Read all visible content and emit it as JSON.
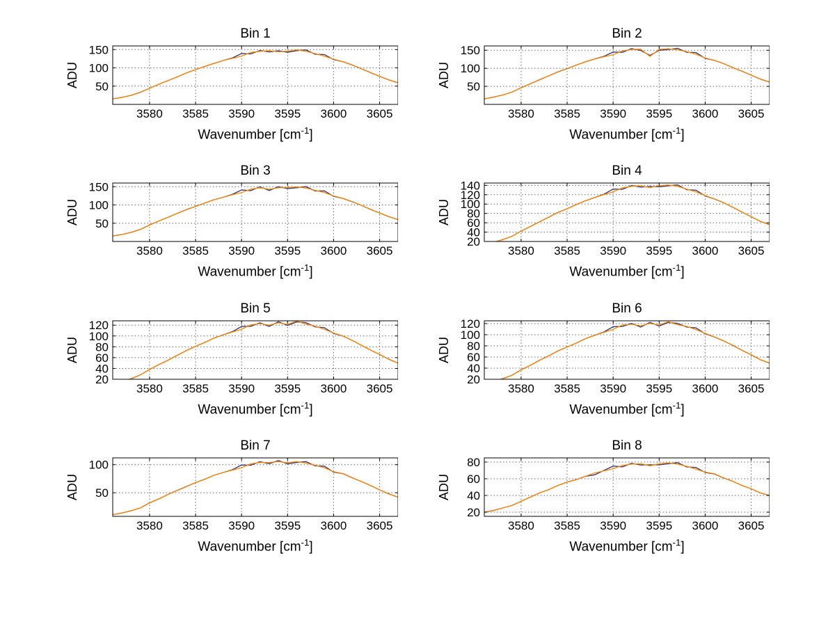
{
  "figure": {
    "background": "#ffffff"
  },
  "chart_data": {
    "type": "line",
    "layout": {
      "rows": 4,
      "cols": 2,
      "grid": "dotted",
      "legend": "none"
    },
    "xlabel": {
      "prefix": "Wavenumber [cm",
      "superscript": "-1",
      "suffix": "]"
    },
    "ylabel": "ADU",
    "xlim": [
      3576,
      3607
    ],
    "xticks": [
      3580,
      3585,
      3590,
      3595,
      3600,
      3605
    ],
    "line_color": "#ff8a00",
    "overlay_color": "#3a3a7a",
    "overlay_noise": 1.0,
    "x": [
      3576,
      3577,
      3578,
      3579,
      3580,
      3581,
      3582,
      3583,
      3584,
      3585,
      3586,
      3587,
      3588,
      3589,
      3590,
      3591,
      3592,
      3593,
      3594,
      3595,
      3596,
      3597,
      3598,
      3599,
      3600,
      3601,
      3602,
      3603,
      3604,
      3605,
      3606,
      3607
    ],
    "panels": [
      {
        "title": "Bin 1",
        "yticks": [
          50,
          100,
          150
        ],
        "ylim": [
          0,
          160
        ],
        "values": [
          15,
          19,
          25,
          33,
          44,
          55,
          65,
          75,
          86,
          95,
          104,
          112,
          120,
          127,
          134,
          140,
          144,
          147,
          145,
          148,
          147,
          144,
          139,
          133,
          126,
          117,
          108,
          98,
          87,
          77,
          67,
          59
        ]
      },
      {
        "title": "Bin 2",
        "yticks": [
          50,
          100,
          150
        ],
        "ylim": [
          0,
          162
        ],
        "values": [
          15,
          20,
          26,
          34,
          46,
          57,
          68,
          79,
          90,
          99,
          109,
          118,
          126,
          133,
          140,
          146,
          151,
          153,
          134,
          155,
          152,
          150,
          146,
          140,
          131,
          122,
          113,
          102,
          92,
          81,
          70,
          62
        ]
      },
      {
        "title": "Bin 3",
        "yticks": [
          50,
          100,
          150
        ],
        "ylim": [
          0,
          160
        ],
        "values": [
          15,
          19,
          25,
          33,
          45,
          56,
          66,
          77,
          87,
          96,
          105,
          114,
          121,
          129,
          136,
          141,
          146,
          143,
          148,
          150,
          147,
          145,
          140,
          135,
          127,
          118,
          109,
          99,
          88,
          78,
          68,
          60
        ]
      },
      {
        "title": "Bin 4",
        "yticks": [
          20,
          40,
          60,
          80,
          100,
          120,
          140
        ],
        "ylim": [
          20,
          145
        ],
        "values": [
          14,
          18,
          24,
          31,
          42,
          52,
          62,
          72,
          82,
          90,
          99,
          107,
          114,
          121,
          128,
          133,
          137,
          139,
          136,
          141,
          139,
          137,
          132,
          127,
          120,
          111,
          103,
          93,
          83,
          73,
          63,
          56
        ]
      },
      {
        "title": "Bin 5",
        "yticks": [
          20,
          40,
          60,
          80,
          100,
          120
        ],
        "ylim": [
          20,
          128
        ],
        "values": [
          13,
          16,
          21,
          28,
          38,
          47,
          55,
          64,
          73,
          81,
          88,
          96,
          102,
          108,
          114,
          119,
          122,
          120,
          125,
          123,
          126,
          121,
          118,
          113,
          107,
          100,
          92,
          83,
          74,
          66,
          57,
          50
        ]
      },
      {
        "title": "Bin 6",
        "yticks": [
          20,
          40,
          60,
          80,
          100,
          120
        ],
        "ylim": [
          20,
          125
        ],
        "values": [
          12,
          16,
          21,
          27,
          37,
          45,
          54,
          62,
          71,
          78,
          85,
          93,
          99,
          105,
          111,
          116,
          118,
          116,
          121,
          119,
          122,
          117,
          115,
          110,
          104,
          96,
          89,
          81,
          72,
          64,
          55,
          49
        ]
      },
      {
        "title": "Bin 7",
        "yticks": [
          50,
          100
        ],
        "ylim": [
          8,
          112
        ],
        "values": [
          11,
          14,
          18,
          23,
          32,
          39,
          47,
          54,
          61,
          68,
          74,
          81,
          86,
          91,
          96,
          100,
          103,
          104,
          106,
          105,
          104,
          102,
          99,
          95,
          89,
          84,
          77,
          70,
          63,
          55,
          48,
          42
        ]
      },
      {
        "title": "Bin 8",
        "yticks": [
          20,
          40,
          60,
          80
        ],
        "ylim": [
          15,
          85
        ],
        "values": [
          20,
          22,
          25,
          28,
          33,
          38,
          43,
          47,
          52,
          56,
          59,
          63,
          67,
          70,
          73,
          75,
          77,
          78,
          76,
          79,
          78,
          77,
          75,
          72,
          69,
          65,
          61,
          57,
          52,
          48,
          43,
          40
        ]
      }
    ]
  }
}
